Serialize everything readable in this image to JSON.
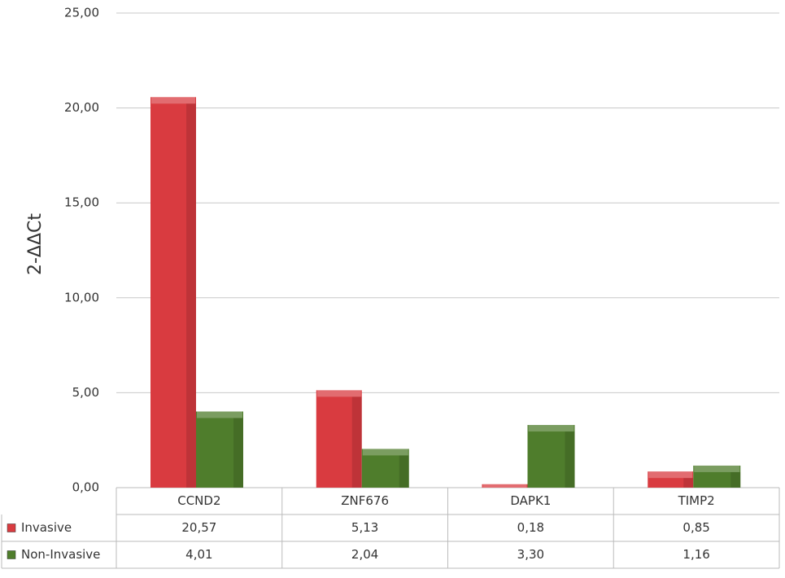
{
  "chart_data": {
    "type": "bar",
    "y_label": "2-ΔΔCt",
    "categories": [
      "CCND2",
      "ZNF676",
      "DAPK1",
      "TIMP2"
    ],
    "series": [
      {
        "name": "Invasive",
        "color": "#d93b40",
        "values": [
          20.57,
          5.13,
          0.18,
          0.85
        ],
        "value_labels": [
          "20,57",
          "5,13",
          "0,18",
          "0,85"
        ]
      },
      {
        "name": "Non-Invasive",
        "color": "#4f7d2c",
        "values": [
          4.01,
          2.04,
          3.3,
          1.16
        ],
        "value_labels": [
          "4,01",
          "2,04",
          "3,30",
          "1,16"
        ]
      }
    ],
    "ylim": [
      0,
      25
    ],
    "yticks": [
      {
        "value": 0,
        "label": "0,00"
      },
      {
        "value": 5,
        "label": "5,00"
      },
      {
        "value": 10,
        "label": "10,00"
      },
      {
        "value": 15,
        "label": "15,00"
      },
      {
        "value": 20,
        "label": "20,00"
      },
      {
        "value": 25,
        "label": "25,00"
      }
    ],
    "grid": true
  }
}
